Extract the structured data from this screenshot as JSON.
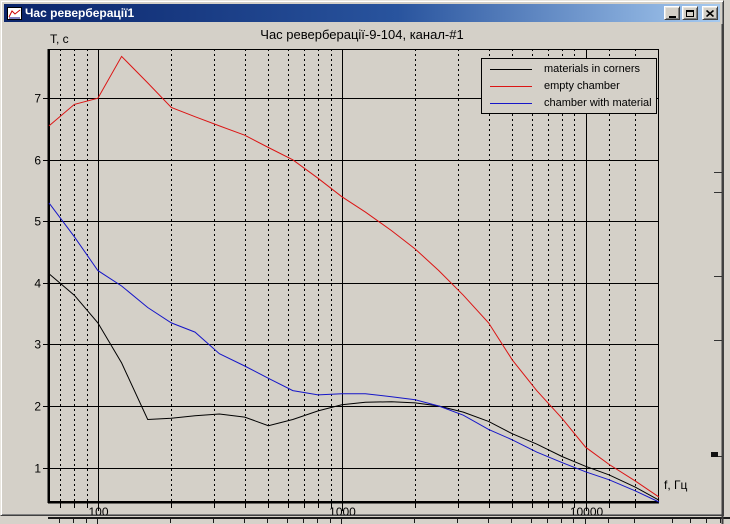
{
  "window": {
    "title": "Час ревербераціï1",
    "icon": "chart-icon",
    "control_icons": [
      "minimize-icon",
      "maximize-icon",
      "close-icon"
    ],
    "colors": {
      "titlebar_start": "#0a246a",
      "titlebar_end": "#a6caf0",
      "window_face": "#d4d0c8"
    }
  },
  "chart_data": {
    "type": "line",
    "title": "Час ревербераціï-9-104, канал-#1",
    "ylabel": "Т, с",
    "xlabel": "f, Гц",
    "x_scale": "log",
    "xlim": [
      63,
      20000
    ],
    "ylim": [
      0.44,
      7.8
    ],
    "y_ticks": [
      1,
      2,
      3,
      4,
      5,
      6,
      7
    ],
    "x_major_ticks": [
      100,
      1000,
      10000
    ],
    "x_major_labels": [
      "100",
      "1000",
      "10000"
    ],
    "x_minor_ticks": [
      70,
      80,
      90,
      200,
      300,
      400,
      500,
      600,
      700,
      800,
      900,
      2000,
      3000,
      4000,
      5000,
      6000,
      7000,
      8000,
      9000,
      12500,
      16000
    ],
    "grid": "solid major lines, dashed minor lines",
    "legend_position": "top-right",
    "series": [
      {
        "name": "materials in corners",
        "color": "#000000",
        "points": [
          [
            63,
            4.15
          ],
          [
            80,
            3.8
          ],
          [
            100,
            3.35
          ],
          [
            125,
            2.7
          ],
          [
            160,
            1.78
          ],
          [
            200,
            1.8
          ],
          [
            250,
            1.84
          ],
          [
            315,
            1.87
          ],
          [
            400,
            1.82
          ],
          [
            500,
            1.68
          ],
          [
            630,
            1.78
          ],
          [
            800,
            1.92
          ],
          [
            1000,
            2.02
          ],
          [
            1250,
            2.06
          ],
          [
            1600,
            2.07
          ],
          [
            2000,
            2.05
          ],
          [
            2500,
            2.0
          ],
          [
            3150,
            1.9
          ],
          [
            4000,
            1.75
          ],
          [
            5000,
            1.55
          ],
          [
            6300,
            1.38
          ],
          [
            8000,
            1.18
          ],
          [
            10000,
            1.02
          ],
          [
            12500,
            0.88
          ],
          [
            16000,
            0.68
          ],
          [
            20000,
            0.47
          ]
        ]
      },
      {
        "name": "empty chamber",
        "color": "#dc1414",
        "points": [
          [
            63,
            6.55
          ],
          [
            80,
            6.9
          ],
          [
            100,
            7.0
          ],
          [
            125,
            7.68
          ],
          [
            160,
            7.25
          ],
          [
            200,
            6.85
          ],
          [
            250,
            6.7
          ],
          [
            315,
            6.55
          ],
          [
            400,
            6.4
          ],
          [
            500,
            6.2
          ],
          [
            630,
            6.0
          ],
          [
            800,
            5.7
          ],
          [
            1000,
            5.4
          ],
          [
            1250,
            5.15
          ],
          [
            1600,
            4.85
          ],
          [
            2000,
            4.55
          ],
          [
            2500,
            4.2
          ],
          [
            3150,
            3.8
          ],
          [
            4000,
            3.35
          ],
          [
            5000,
            2.75
          ],
          [
            6300,
            2.25
          ],
          [
            8000,
            1.8
          ],
          [
            10000,
            1.33
          ],
          [
            12500,
            1.05
          ],
          [
            16000,
            0.78
          ],
          [
            20000,
            0.52
          ]
        ]
      },
      {
        "name": "chamber with material",
        "color": "#1616c8",
        "points": [
          [
            63,
            5.3
          ],
          [
            80,
            4.75
          ],
          [
            100,
            4.2
          ],
          [
            125,
            3.95
          ],
          [
            160,
            3.6
          ],
          [
            200,
            3.35
          ],
          [
            250,
            3.2
          ],
          [
            315,
            2.85
          ],
          [
            400,
            2.65
          ],
          [
            500,
            2.45
          ],
          [
            630,
            2.25
          ],
          [
            800,
            2.18
          ],
          [
            1000,
            2.2
          ],
          [
            1250,
            2.2
          ],
          [
            1600,
            2.15
          ],
          [
            2000,
            2.1
          ],
          [
            2500,
            2.0
          ],
          [
            3150,
            1.85
          ],
          [
            4000,
            1.62
          ],
          [
            5000,
            1.45
          ],
          [
            6300,
            1.25
          ],
          [
            8000,
            1.08
          ],
          [
            10000,
            0.93
          ],
          [
            12500,
            0.8
          ],
          [
            16000,
            0.62
          ],
          [
            20000,
            0.44
          ]
        ]
      }
    ]
  }
}
